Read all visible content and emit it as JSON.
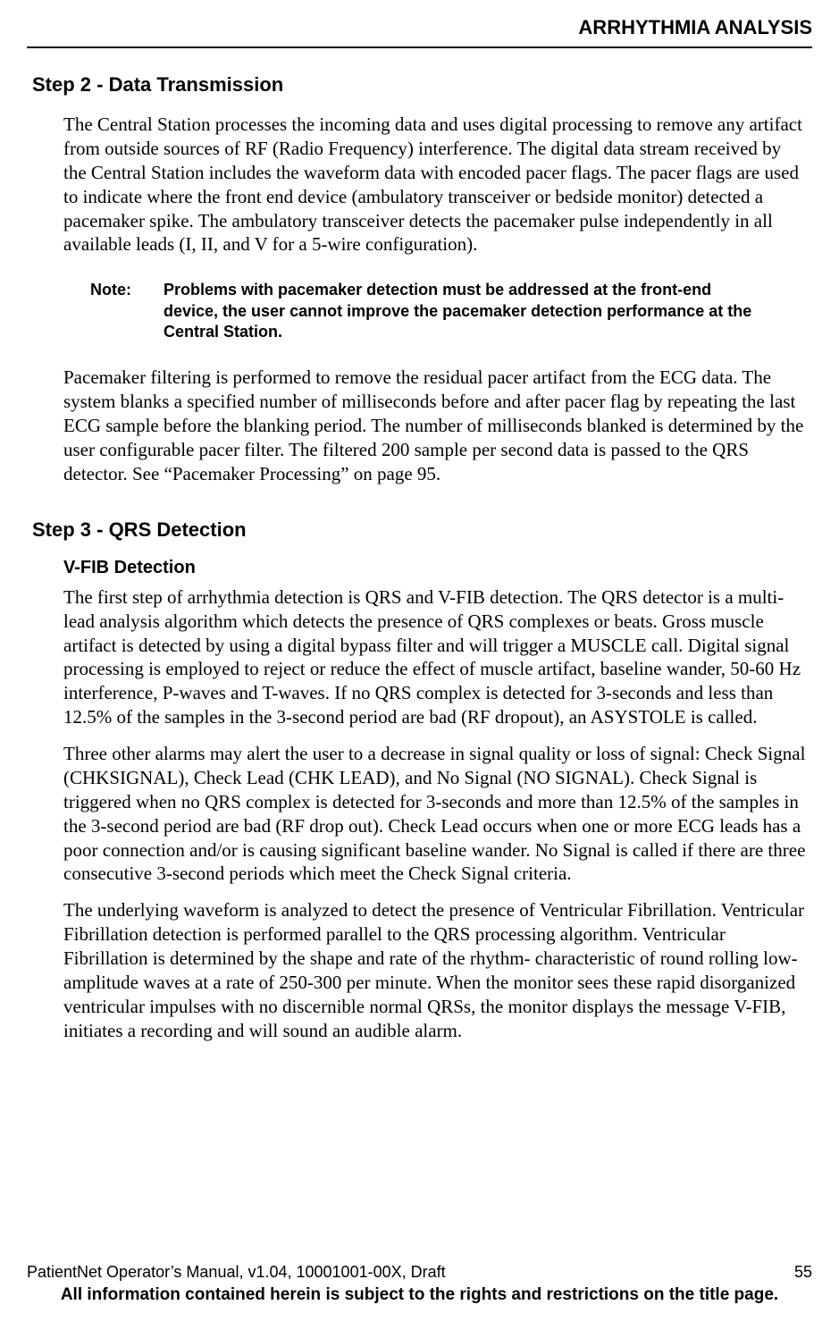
{
  "header": "ARRHYTHMIA ANALYSIS",
  "step2": {
    "title": "Step 2 - Data Transmission",
    "p1": "The Central Station processes the incoming data and uses digital processing to remove any artifact from outside sources of RF (Radio Frequency) interference. The digital data stream received by the Central Station includes the waveform data with encoded pacer flags. The pacer flags are used to indicate where the front end device (ambulatory transceiver or bedside monitor) detected a pacemaker spike. The ambulatory transceiver detects the pacemaker pulse independently in all available leads (I, II, and V for a 5-wire configuration).",
    "note_label": "Note:",
    "note_body": "Problems with pacemaker detection must be addressed at the front-end device, the user cannot improve the pacemaker detection performance at the Central Station.",
    "p2": "Pacemaker filtering is performed to remove the residual pacer artifact from the ECG data. The system blanks a specified number of milliseconds before and after pacer flag by repeating the last ECG sample before the blanking period. The number of milliseconds blanked is deter­mined by the user configurable pacer filter. The filtered 200 sample per second data is passed to the QRS detector. See “Pacemaker Processing” on page 95."
  },
  "step3": {
    "title": "Step 3 - QRS Detection",
    "sub1": "V-FIB Detection",
    "p1": "The first step of arrhythmia detection is QRS and V-FIB detection. The QRS detector is a multi-lead analysis algorithm which detects the presence of QRS complexes or beats. Gross muscle artifact is detected by using a digital bypass filter and will trigger a MUSCLE call. Digital signal processing is employed to reject or reduce the effect of muscle artifact, baseline wander, 50-60 Hz interference, P-waves and T-waves. If no QRS complex is detected for 3-seconds and less than 12.5% of the samples in the 3-second period are bad (RF dropout), an ASYSTOLE is called.",
    "p2": "Three other alarms may alert the user to a decrease in signal quality or loss of signal: Check Signal (CHKSIGNAL), Check Lead (CHK LEAD), and No Signal (NO SIGNAL). Check Sig­nal is triggered when no QRS complex is detected for 3-seconds and more than 12.5% of the samples in the 3-second period are bad (RF drop out). Check Lead occurs when one or more ECG leads has a poor connection and/or is causing significant baseline wander. No Signal is called if there are three consecutive 3-second periods which meet the Check Signal criteria.",
    "p3": "The underlying waveform is analyzed to detect the presence of Ventricular Fibrillation. Ven­tricular Fibrillation detection is performed parallel to the QRS processing algorithm. Ventricu­lar Fibrillation is determined by the shape and rate of the rhythm- characteristic of round rolling low-amplitude waves at a rate of 250-300 per minute. When the monitor sees these rapid disorganized ventricular impulses with no discernible normal QRSs, the monitor dis­plays the message V-FIB, initiates a recording and will sound an audible alarm."
  },
  "footer": {
    "left": "PatientNet Operator’s Manual, v1.04, 10001001-00X, Draft",
    "page": "55",
    "rights": "All information contained herein is subject to the rights and restrictions on the title page."
  }
}
